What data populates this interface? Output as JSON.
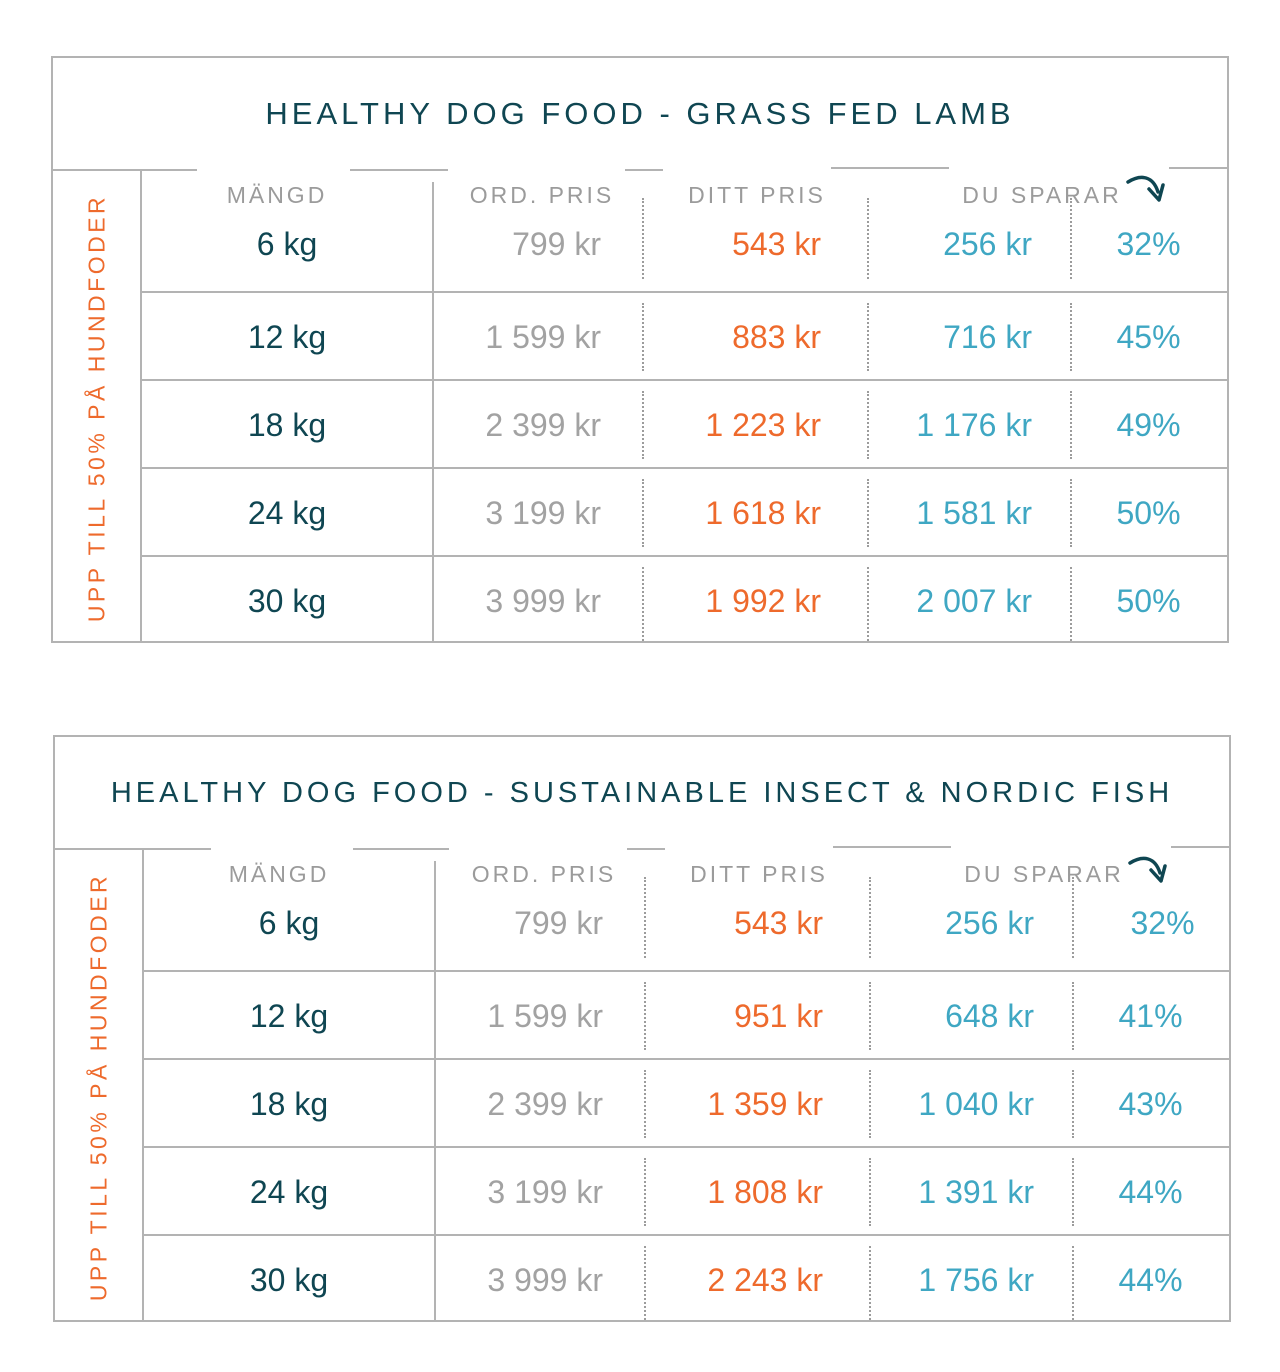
{
  "tables": [
    {
      "title": "HEALTHY DOG FOOD - GRASS FED LAMB",
      "side_label": "UPP TILL 50% PÅ HUNDFODER",
      "headers": {
        "qty": "MÄNGD",
        "ord": "ORD. PRIS",
        "ditt": "DITT PRIS",
        "save": "DU SPARAR"
      },
      "rows": [
        {
          "qty": "6 kg",
          "ord": "799 kr",
          "ditt": "543 kr",
          "save": "256 kr",
          "pct": "32%"
        },
        {
          "qty": "12 kg",
          "ord": "1 599 kr",
          "ditt": "883 kr",
          "save": "716 kr",
          "pct": "45%"
        },
        {
          "qty": "18 kg",
          "ord": "2 399 kr",
          "ditt": "1 223 kr",
          "save": "1 176 kr",
          "pct": "49%"
        },
        {
          "qty": "24 kg",
          "ord": "3 199 kr",
          "ditt": "1 618 kr",
          "save": "1 581 kr",
          "pct": "50%"
        },
        {
          "qty": "30 kg",
          "ord": "3 999 kr",
          "ditt": "1 992 kr",
          "save": "2 007 kr",
          "pct": "50%"
        }
      ]
    },
    {
      "title": "HEALTHY DOG FOOD - SUSTAINABLE INSECT & NORDIC FISH",
      "side_label": "UPP TILL 50% PÅ HUNDFODER",
      "headers": {
        "qty": "MÄNGD",
        "ord": "ORD. PRIS",
        "ditt": "DITT PRIS",
        "save": "DU SPARAR"
      },
      "rows": [
        {
          "qty": "6 kg",
          "ord": "799 kr",
          "ditt": "543 kr",
          "save": "256 kr",
          "pct": "32%"
        },
        {
          "qty": "12 kg",
          "ord": "1 599 kr",
          "ditt": "951 kr",
          "save": "648 kr",
          "pct": "41%"
        },
        {
          "qty": "18 kg",
          "ord": "2 399 kr",
          "ditt": "1 359 kr",
          "save": "1 040 kr",
          "pct": "43%"
        },
        {
          "qty": "24 kg",
          "ord": "3 199 kr",
          "ditt": "1 808 kr",
          "save": "1 391 kr",
          "pct": "44%"
        },
        {
          "qty": "30 kg",
          "ord": "3 999 kr",
          "ditt": "2 243 kr",
          "save": "1 756 kr",
          "pct": "44%"
        }
      ]
    }
  ],
  "icons": {
    "arrow": "curved-arrow-icon"
  },
  "colors": {
    "title": "#0f4652",
    "ditt": "#ee6a2c",
    "save": "#3fa7c3",
    "ord": "#a2a2a2",
    "side": "#ee6a2c",
    "border": "#b3b3b3"
  }
}
